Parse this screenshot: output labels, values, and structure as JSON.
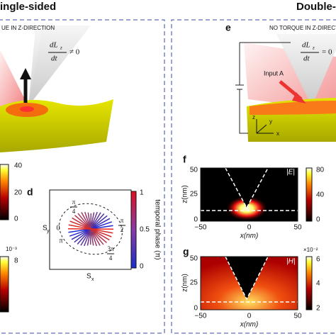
{
  "header": {
    "left": "ingle-sided",
    "right": "Double-s"
  },
  "panel_a": {
    "note": "UE   IN Z-DIRECTION",
    "eq_num": "dL",
    "eq_sub": "z",
    "eq_den": "dt",
    "eq_rel": "≠ 0"
  },
  "panel_e": {
    "label": "e",
    "note": "NO TORQUE   IN Z-DIRECTION",
    "eq_num": "dL",
    "eq_sub": "z",
    "eq_den": "dt",
    "eq_rel": "= 0",
    "input": "Input A",
    "axis_z": "z",
    "axis_y": "y",
    "axis_x": "x"
  },
  "left_colorbars": {
    "top_ticks": [
      "40",
      "20",
      "0"
    ],
    "bottom_exp": "10⁻³",
    "bottom_ticks": [
      "8"
    ]
  },
  "panel_d": {
    "label": "d",
    "ylabel": "S",
    "ylabel_sub": "y",
    "xlabel": "S",
    "xlabel_sub": "x",
    "phase_labels": [
      {
        "num": "π",
        "den": "4"
      },
      {
        "num": "π",
        "den": "2"
      },
      {
        "num": "3π",
        "den": "4"
      },
      {
        "text": "0"
      },
      {
        "text": "π"
      }
    ],
    "colorbar_label": "temporal phase (π)",
    "colorbar_ticks": [
      "1",
      "0.5",
      "0"
    ]
  },
  "panel_f": {
    "label": "f",
    "title": "|E|",
    "ylabel": "z(nm)",
    "xlabel": "x(nm)",
    "yticks": [
      "50",
      "25",
      "0"
    ],
    "xticks": [
      "−50",
      "0",
      "50"
    ],
    "colorbar_ticks": [
      "80",
      "40",
      "0"
    ]
  },
  "panel_g": {
    "label": "g",
    "title": "|H|",
    "ylabel": "z(nm)",
    "xlabel": "x(nm)",
    "yticks": [
      "50",
      "25",
      "0"
    ],
    "xticks": [
      "−50",
      "0",
      "50"
    ],
    "colorbar_exp": "×10⁻²",
    "colorbar_ticks": [
      "6",
      "4",
      "2"
    ]
  }
}
